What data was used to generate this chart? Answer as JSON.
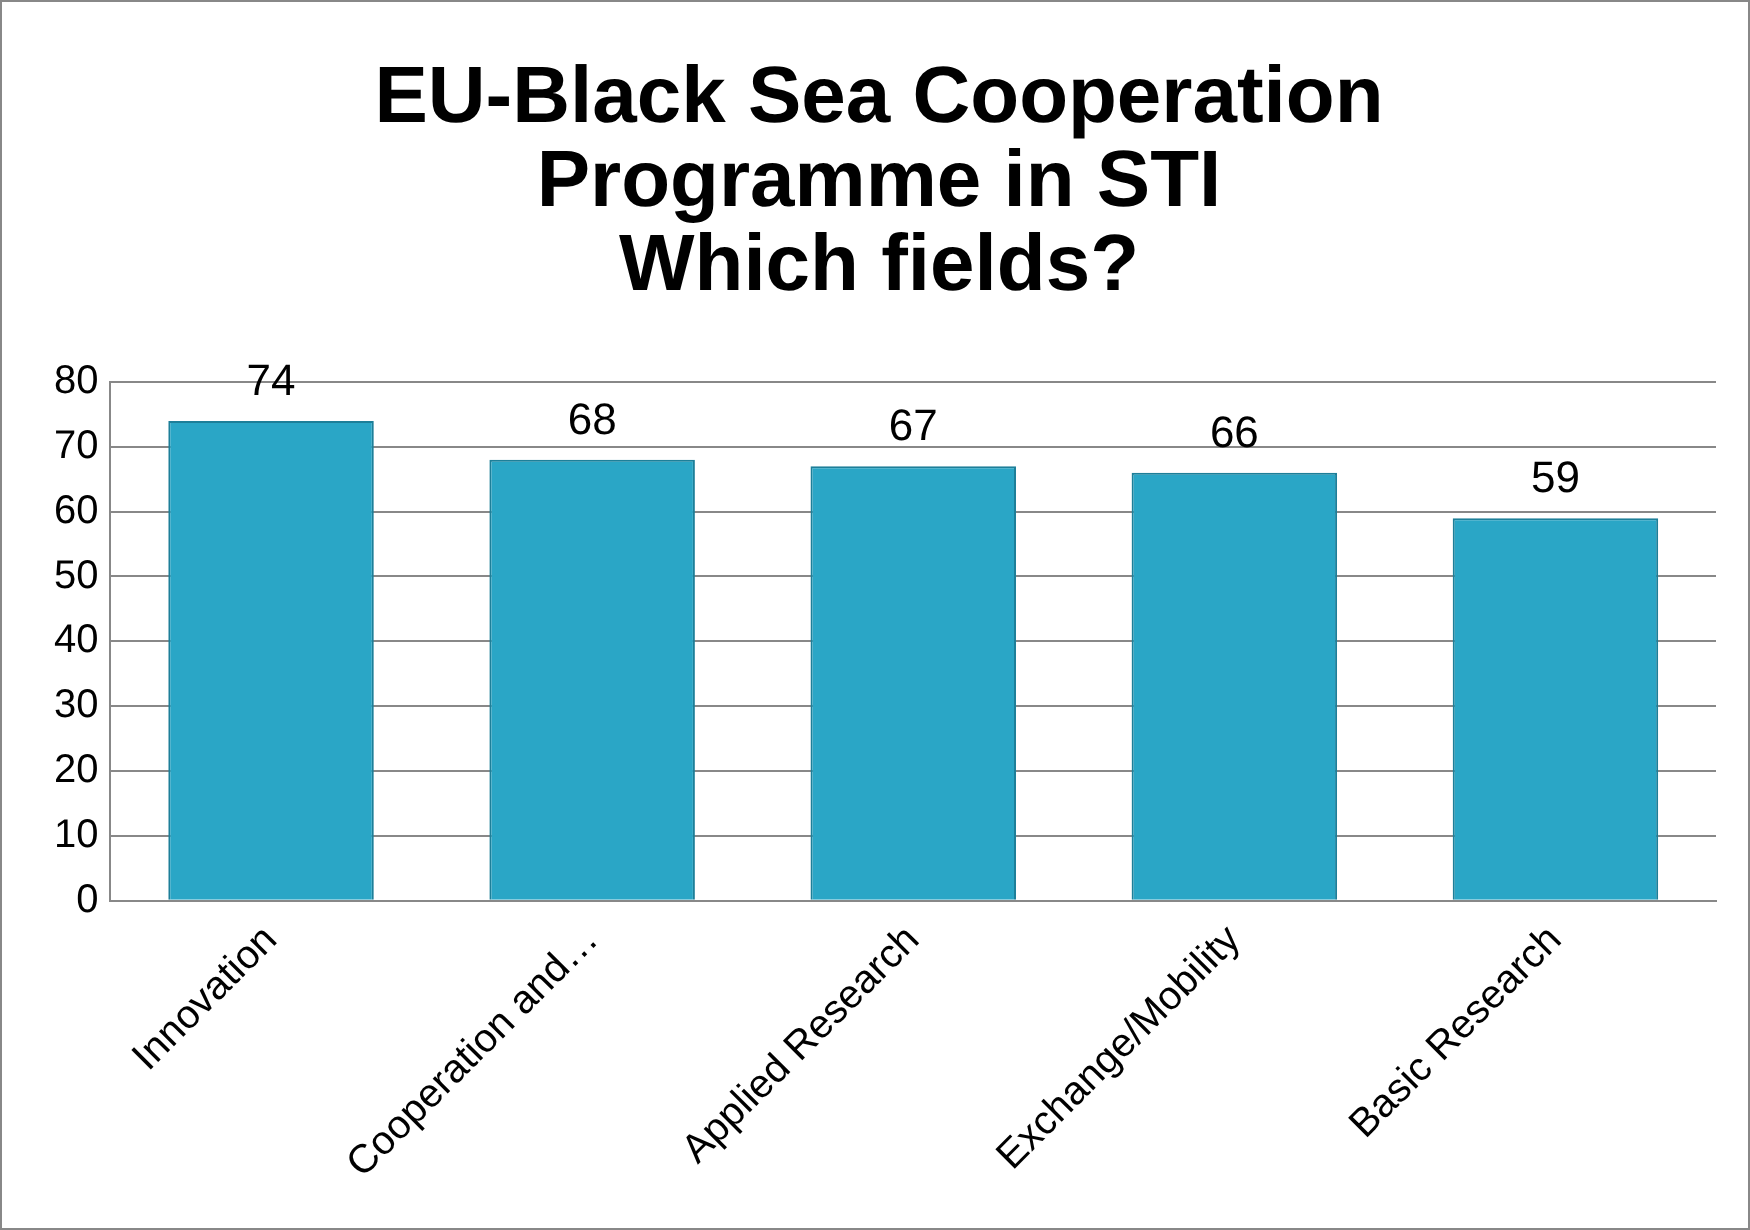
{
  "chart_data": {
    "type": "bar",
    "title": "EU-Black Sea Cooperation\nProgramme in STI\nWhich fields?",
    "categories": [
      "Innovation",
      "Cooperation and…",
      "Applied Research",
      "Exchange/Mobility",
      "Basic Research"
    ],
    "values": [
      74,
      68,
      67,
      66,
      59
    ],
    "color": "#2aa6c6",
    "ylim": [
      0,
      80
    ],
    "yticks": [
      0,
      10,
      20,
      30,
      40,
      50,
      60,
      70,
      80
    ],
    "grid": "y",
    "data_labels": true,
    "legend": false
  }
}
